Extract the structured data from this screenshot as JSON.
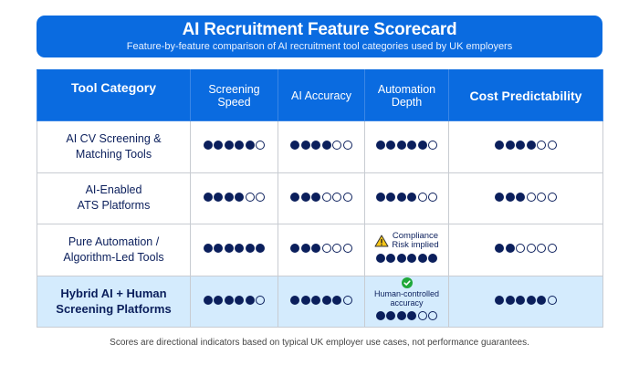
{
  "header": {
    "title": "AI Recruitment Feature Scorecard",
    "subtitle": "Feature-by-feature comparison of AI recruitment tool categories used by UK employers"
  },
  "table": {
    "columns": [
      {
        "label": "Tool Category",
        "bold": true
      },
      {
        "label_line1": "Screening",
        "label_line2": "Speed",
        "bold": false
      },
      {
        "label": "AI Accuracy",
        "bold": false
      },
      {
        "label_line1": "Automation",
        "label_line2": "Depth",
        "bold": false
      },
      {
        "label": "Cost Predictability",
        "bold": true
      }
    ],
    "max_score": 6,
    "rows": [
      {
        "category_line1": "AI CV Screening &",
        "category_line2": "Matching Tools",
        "screening_speed": 5,
        "ai_accuracy": 4,
        "automation_depth": 5,
        "cost_predictability": 4,
        "highlighted": false
      },
      {
        "category_line1": "AI-Enabled",
        "category_line2": "ATS Platforms",
        "screening_speed": 4,
        "ai_accuracy": 3,
        "automation_depth": 4,
        "cost_predictability": 3,
        "highlighted": false
      },
      {
        "category_line1": "Pure Automation /",
        "category_line2": "Algorithm-Led Tools",
        "screening_speed": 6,
        "ai_accuracy": 3,
        "automation_depth": 6,
        "automation_note": {
          "icon": "warning-icon",
          "line1": "Compliance",
          "line2": "Risk implied"
        },
        "cost_predictability": 2,
        "highlighted": false
      },
      {
        "category_line1": "Hybrid AI + Human",
        "category_line2": "Screening Platforms",
        "screening_speed": 5,
        "ai_accuracy": 5,
        "automation_depth": 4,
        "automation_note": {
          "icon": "check-circle-icon",
          "line1": "Human-controlled",
          "line2": "accuracy"
        },
        "cost_predictability": 5,
        "highlighted": true
      }
    ]
  },
  "footer": {
    "disclaimer": "Scores are directional indicators based on typical UK employer use cases, not performance guarantees."
  },
  "colors": {
    "header_blue": "#0a6be0",
    "dot_navy": "#0b1f5c",
    "highlight_row": "#d4ebfd",
    "grid": "#c8ccd2",
    "warning": "#f5c518",
    "check": "#1fa83a"
  }
}
